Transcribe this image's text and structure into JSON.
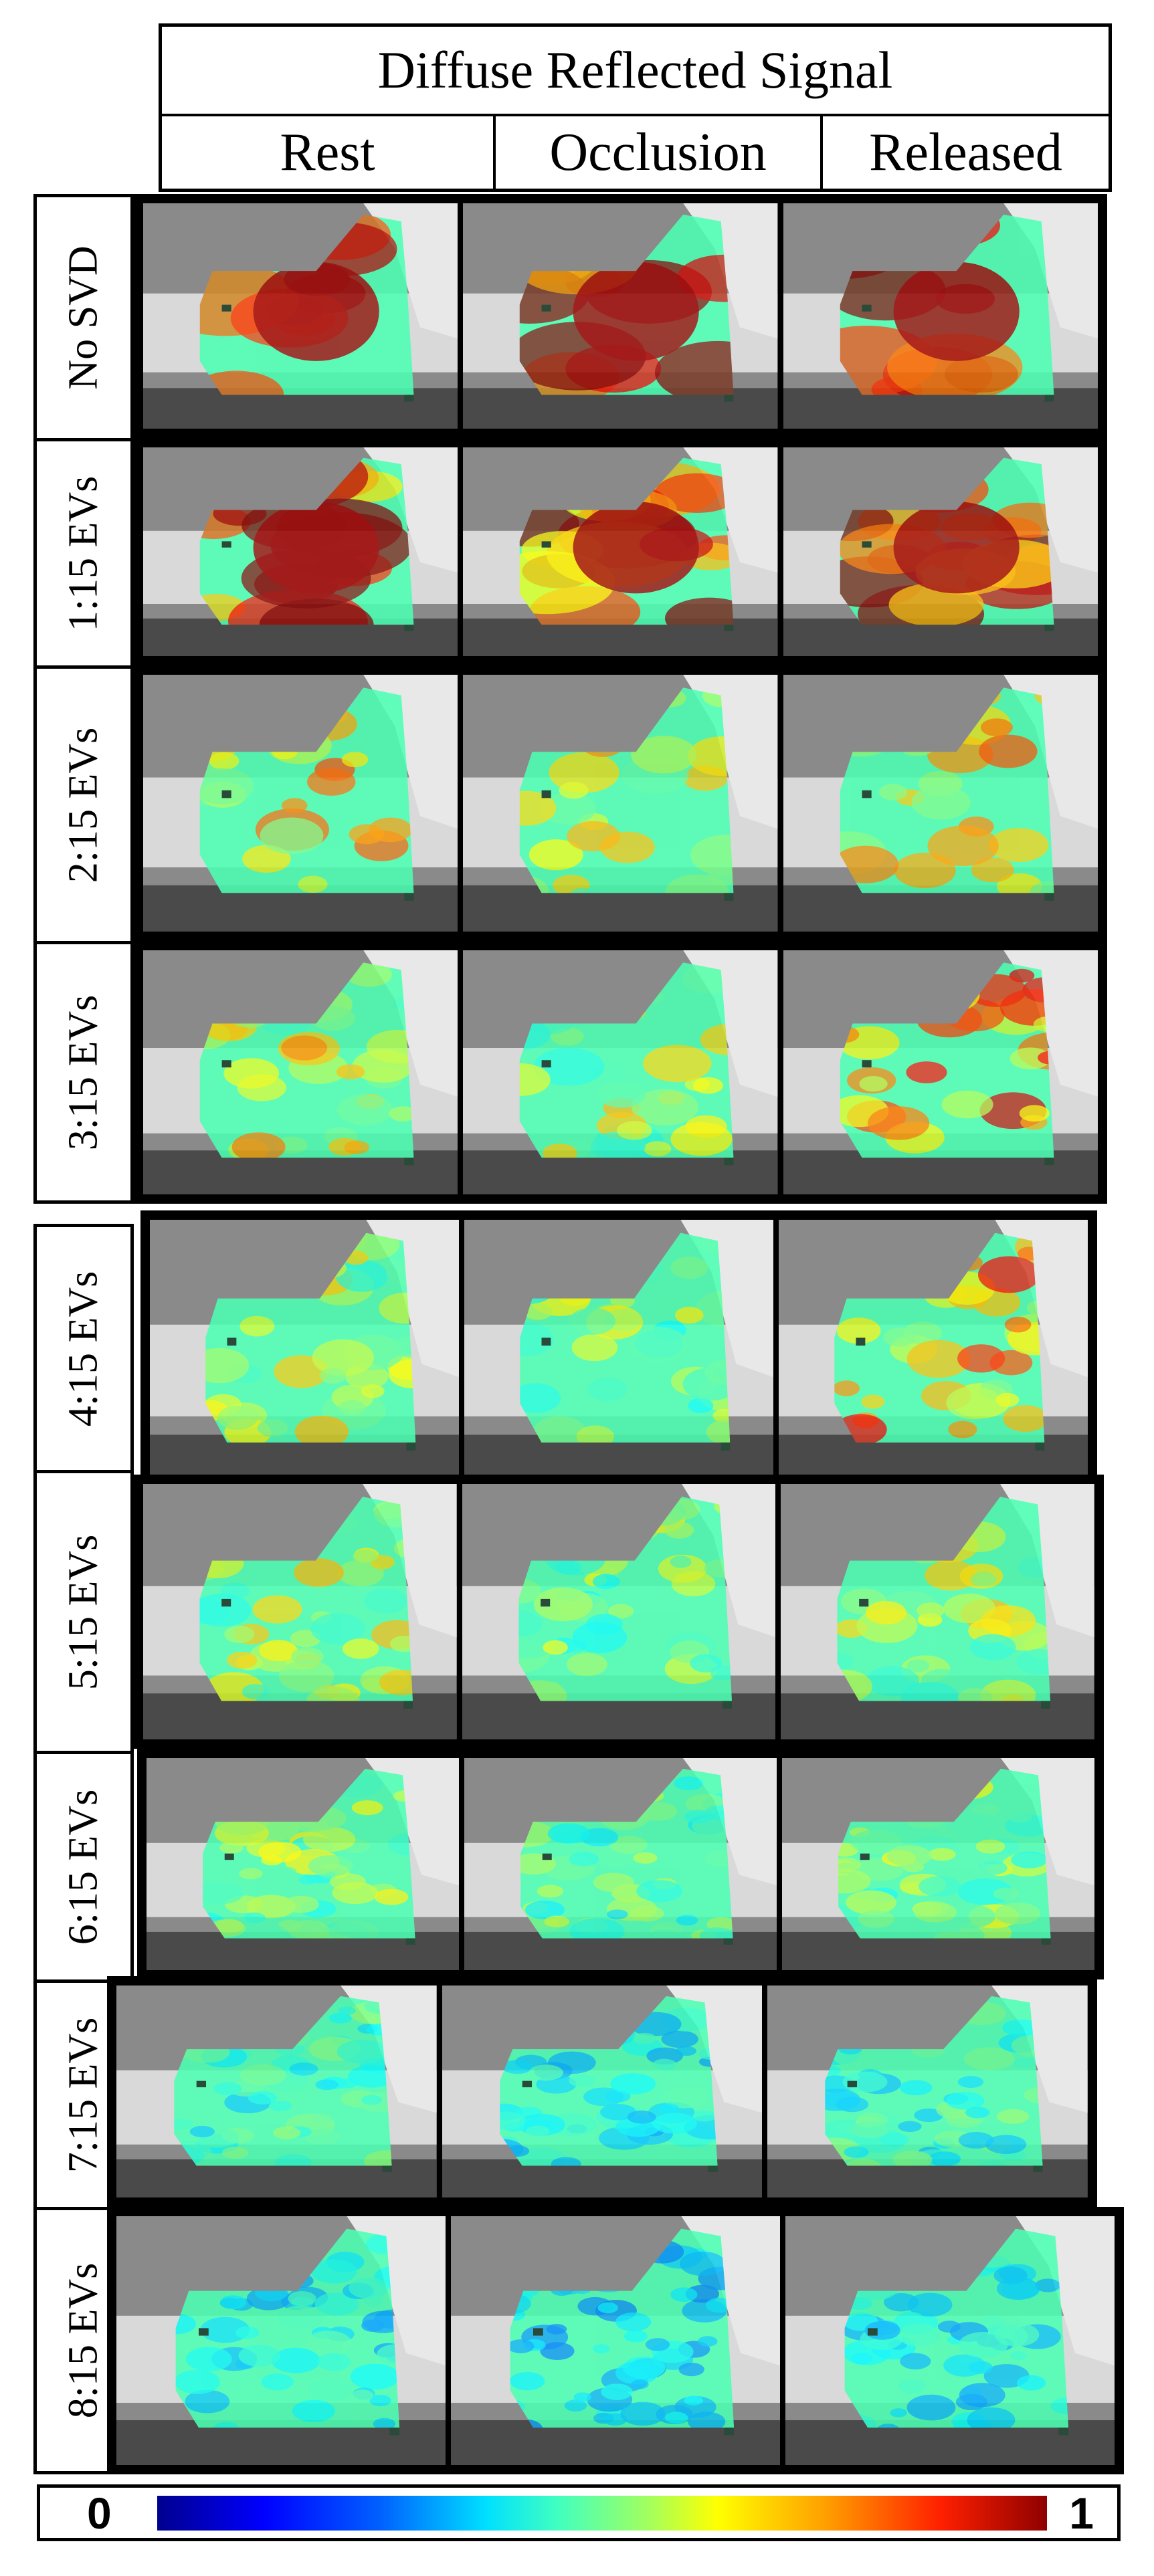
{
  "figure": {
    "title": "Diffuse Reflected Signal",
    "columns": [
      "Rest",
      "Occlusion",
      "Released"
    ],
    "rows": [
      "No SVD",
      "1:15 EVs",
      "2:15 EVs",
      "3:15 EVs",
      "4:15 EVs",
      "5:15 EVs",
      "6:15 EVs",
      "7:15 EVs",
      "8:15 EVs"
    ]
  },
  "colorbar": {
    "min_label": "0",
    "max_label": "1",
    "colormap": "jet"
  },
  "colors": {
    "frame": "#000000",
    "photo_background": "#8a8a8a",
    "heat_low": "#00008f",
    "heat_mid": "#40ffc0",
    "heat_high": "#8f0000"
  }
}
